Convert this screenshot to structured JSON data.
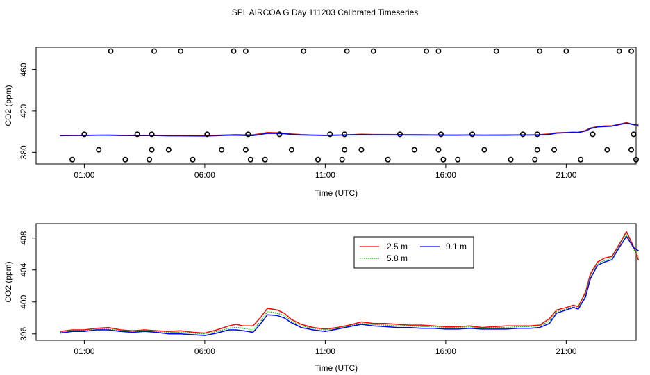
{
  "figure": {
    "title": "SPL AIRCOA G  Day 111203  Calibrated Timeseries"
  },
  "chart_data": [
    {
      "type": "line+scatter",
      "xlabel": "Time (UTC)",
      "ylabel": "CO2 (ppm)",
      "xlim": [
        -1.0,
        23.9
      ],
      "ylim": [
        368.8,
        481.8
      ],
      "xticks": [
        1,
        6,
        11,
        16,
        21
      ],
      "xtick_labels": [
        "01:00",
        "06:00",
        "11:00",
        "16:00",
        "21:00"
      ],
      "yticks": [
        380,
        420,
        460
      ],
      "ytick_labels": [
        "380",
        "420",
        "460"
      ],
      "scatter_points": [
        {
          "x": 1.0,
          "y": 397.5
        },
        {
          "x": 1.6,
          "y": 382.5
        },
        {
          "x": 0.5,
          "y": 373
        },
        {
          "x": 2.1,
          "y": 478
        },
        {
          "x": 2.7,
          "y": 373
        },
        {
          "x": 3.2,
          "y": 397.5
        },
        {
          "x": 3.7,
          "y": 373
        },
        {
          "x": 3.8,
          "y": 382.5
        },
        {
          "x": 3.8,
          "y": 397.5
        },
        {
          "x": 3.9,
          "y": 478
        },
        {
          "x": 4.5,
          "y": 382.5
        },
        {
          "x": 5.0,
          "y": 478
        },
        {
          "x": 5.5,
          "y": 373
        },
        {
          "x": 6.1,
          "y": 397.5
        },
        {
          "x": 6.7,
          "y": 382.5
        },
        {
          "x": 7.2,
          "y": 478
        },
        {
          "x": 7.7,
          "y": 382.5
        },
        {
          "x": 7.7,
          "y": 478
        },
        {
          "x": 7.8,
          "y": 397.5
        },
        {
          "x": 7.9,
          "y": 373
        },
        {
          "x": 8.5,
          "y": 373
        },
        {
          "x": 9.1,
          "y": 397.5
        },
        {
          "x": 9.6,
          "y": 382.5
        },
        {
          "x": 10.1,
          "y": 478
        },
        {
          "x": 10.7,
          "y": 373
        },
        {
          "x": 11.2,
          "y": 397.5
        },
        {
          "x": 11.7,
          "y": 373
        },
        {
          "x": 11.8,
          "y": 382.5
        },
        {
          "x": 11.8,
          "y": 397.5
        },
        {
          "x": 11.9,
          "y": 478
        },
        {
          "x": 12.5,
          "y": 382.5
        },
        {
          "x": 13.0,
          "y": 478
        },
        {
          "x": 13.6,
          "y": 373
        },
        {
          "x": 14.1,
          "y": 397.5
        },
        {
          "x": 14.7,
          "y": 382.5
        },
        {
          "x": 15.2,
          "y": 478
        },
        {
          "x": 15.7,
          "y": 382.5
        },
        {
          "x": 15.7,
          "y": 478
        },
        {
          "x": 15.8,
          "y": 397.5
        },
        {
          "x": 15.9,
          "y": 373
        },
        {
          "x": 16.5,
          "y": 373
        },
        {
          "x": 17.1,
          "y": 397.5
        },
        {
          "x": 17.6,
          "y": 382.5
        },
        {
          "x": 18.1,
          "y": 478
        },
        {
          "x": 18.7,
          "y": 373
        },
        {
          "x": 19.2,
          "y": 397.5
        },
        {
          "x": 19.7,
          "y": 373
        },
        {
          "x": 19.8,
          "y": 382.5
        },
        {
          "x": 19.8,
          "y": 397.5
        },
        {
          "x": 19.9,
          "y": 478
        },
        {
          "x": 20.5,
          "y": 382.5
        },
        {
          "x": 21.0,
          "y": 478
        },
        {
          "x": 21.6,
          "y": 373
        },
        {
          "x": 22.1,
          "y": 397.5
        },
        {
          "x": 22.7,
          "y": 382.5
        },
        {
          "x": 23.2,
          "y": 478
        },
        {
          "x": 23.7,
          "y": 382.5
        },
        {
          "x": 23.7,
          "y": 478
        },
        {
          "x": 23.8,
          "y": 397.5
        },
        {
          "x": 23.9,
          "y": 373
        }
      ],
      "series": [
        {
          "name": "2.5 m",
          "color": "#ff0000",
          "dash": "solid",
          "source": "co2_profile.0"
        },
        {
          "name": "5.8 m",
          "color": "#00c000",
          "dash": "dotted",
          "source": "co2_profile.1"
        },
        {
          "name": "9.1 m",
          "color": "#0000ff",
          "dash": "solid",
          "source": "co2_profile.2"
        }
      ]
    },
    {
      "type": "line",
      "xlabel": "Time (UTC)",
      "ylabel": "CO2 (ppm)",
      "xlim": [
        -1.0,
        23.9
      ],
      "ylim": [
        395.2,
        409.8
      ],
      "xticks": [
        1,
        6,
        11,
        16,
        21
      ],
      "xtick_labels": [
        "01:00",
        "06:00",
        "11:00",
        "16:00",
        "21:00"
      ],
      "yticks": [
        396,
        400,
        404,
        408
      ],
      "ytick_labels": [
        "396",
        "400",
        "404",
        "408"
      ],
      "legend": {
        "position": "top-right-center",
        "entries": [
          "2.5 m",
          "5.8 m",
          "9.1 m"
        ]
      },
      "series": [
        {
          "name": "2.5 m",
          "color": "#ff0000",
          "dash": "solid",
          "source": "co2_profile.0"
        },
        {
          "name": "5.8 m",
          "color": "#00c000",
          "dash": "dotted",
          "source": "co2_profile.1"
        },
        {
          "name": "9.1 m",
          "color": "#0000ff",
          "dash": "solid",
          "source": "co2_profile.2"
        }
      ]
    }
  ],
  "co2_profile": [
    {
      "name": "2.5 m",
      "x": [
        0,
        0.5,
        1.0,
        1.5,
        2.0,
        2.5,
        3.0,
        3.5,
        4.0,
        4.5,
        5.0,
        5.5,
        6.0,
        6.5,
        7.0,
        7.3,
        7.6,
        8.0,
        8.3,
        8.6,
        9.0,
        9.3,
        9.6,
        10.0,
        10.5,
        11.0,
        11.5,
        12.0,
        12.5,
        13.0,
        13.5,
        14.0,
        14.5,
        15.0,
        15.5,
        16.0,
        16.5,
        17.0,
        17.5,
        18.0,
        18.5,
        19.0,
        19.5,
        19.9,
        20.3,
        20.6,
        21.0,
        21.3,
        21.5,
        21.8,
        22.0,
        22.3,
        22.6,
        22.9,
        23.2,
        23.5,
        23.8,
        24.0
      ],
      "y": [
        396.3,
        396.5,
        396.5,
        396.7,
        396.8,
        396.5,
        396.4,
        396.5,
        396.4,
        396.3,
        396.4,
        396.2,
        396.1,
        396.5,
        397.0,
        397.2,
        397.0,
        397.0,
        398.0,
        399.2,
        399.0,
        398.6,
        397.8,
        397.2,
        396.8,
        396.6,
        396.8,
        397.1,
        397.5,
        397.3,
        397.3,
        397.2,
        397.1,
        397.1,
        397.0,
        396.9,
        396.9,
        397.0,
        396.8,
        396.9,
        397.0,
        397.0,
        397.0,
        397.1,
        397.9,
        399.0,
        399.3,
        399.6,
        399.4,
        401.2,
        403.5,
        405.0,
        405.5,
        405.7,
        407.2,
        408.8,
        406.9,
        405.2
      ]
    },
    {
      "name": "5.8 m",
      "x": [
        0,
        0.5,
        1.0,
        1.5,
        2.0,
        2.5,
        3.0,
        3.5,
        4.0,
        4.5,
        5.0,
        5.5,
        6.0,
        6.5,
        7.0,
        7.3,
        7.6,
        8.0,
        8.3,
        8.6,
        9.0,
        9.3,
        9.6,
        10.0,
        10.5,
        11.0,
        11.5,
        12.0,
        12.5,
        13.0,
        13.5,
        14.0,
        14.5,
        15.0,
        15.5,
        16.0,
        16.5,
        17.0,
        17.5,
        18.0,
        18.5,
        19.0,
        19.5,
        19.9,
        20.3,
        20.6,
        21.0,
        21.3,
        21.5,
        21.8,
        22.0,
        22.3,
        22.6,
        22.9,
        23.2,
        23.5,
        23.8,
        24.0
      ],
      "y": [
        396.2,
        396.4,
        396.4,
        396.6,
        396.6,
        396.4,
        396.3,
        396.4,
        396.3,
        396.2,
        396.2,
        396.1,
        396.0,
        396.3,
        396.7,
        396.8,
        396.7,
        396.5,
        397.5,
        398.8,
        398.6,
        398.3,
        397.6,
        397.0,
        396.7,
        396.5,
        396.7,
        397.0,
        397.3,
        397.2,
        397.1,
        397.0,
        397.0,
        396.9,
        396.9,
        396.8,
        396.8,
        396.9,
        396.7,
        396.8,
        396.8,
        396.9,
        396.9,
        397.0,
        397.6,
        398.8,
        399.1,
        399.4,
        399.2,
        400.9,
        403.2,
        404.8,
        405.2,
        405.5,
        407.0,
        408.5,
        406.6,
        405.6
      ]
    },
    {
      "name": "9.1 m",
      "x": [
        0,
        0.5,
        1.0,
        1.5,
        2.0,
        2.5,
        3.0,
        3.5,
        4.0,
        4.5,
        5.0,
        5.5,
        6.0,
        6.5,
        7.0,
        7.3,
        7.6,
        8.0,
        8.3,
        8.6,
        9.0,
        9.3,
        9.6,
        10.0,
        10.5,
        11.0,
        11.5,
        12.0,
        12.5,
        13.0,
        13.5,
        14.0,
        14.5,
        15.0,
        15.5,
        16.0,
        16.5,
        17.0,
        17.5,
        18.0,
        18.5,
        19.0,
        19.5,
        19.9,
        20.3,
        20.6,
        21.0,
        21.3,
        21.5,
        21.8,
        22.0,
        22.3,
        22.6,
        22.9,
        23.2,
        23.5,
        23.8,
        24.0
      ],
      "y": [
        396.1,
        396.3,
        396.3,
        396.5,
        396.5,
        396.3,
        396.2,
        396.3,
        396.2,
        396.0,
        396.0,
        395.9,
        395.8,
        396.1,
        396.5,
        396.5,
        396.4,
        396.2,
        397.2,
        398.4,
        398.3,
        398.0,
        397.4,
        396.8,
        396.5,
        396.3,
        396.6,
        396.9,
        397.2,
        397.0,
        396.9,
        396.8,
        396.8,
        396.7,
        396.7,
        396.6,
        396.6,
        396.7,
        396.6,
        396.6,
        396.6,
        396.7,
        396.7,
        396.8,
        397.3,
        398.6,
        399.0,
        399.3,
        399.1,
        400.6,
        402.9,
        404.6,
        405.0,
        405.3,
        406.8,
        408.2,
        406.8,
        406.4
      ]
    }
  ]
}
